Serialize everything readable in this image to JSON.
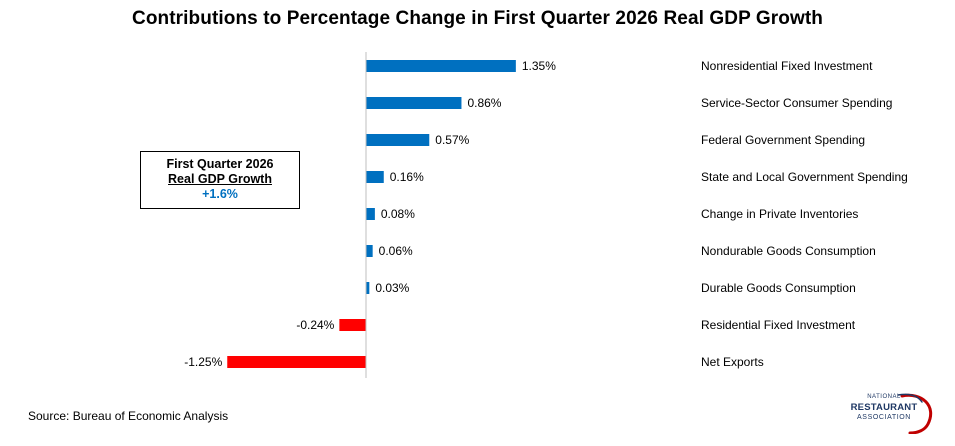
{
  "title": "Contributions to Percentage Change in First Quarter 2026 Real GDP Growth",
  "callout": {
    "line1": "First Quarter 2026",
    "line2": "Real GDP Growth",
    "value": "+1.6%"
  },
  "source": "Source: Bureau of Economic Analysis",
  "logo": {
    "line1": "NATIONAL",
    "line2": "RESTAURANT",
    "line3": "ASSOCIATION",
    "icon": "swoosh-logo"
  },
  "colors": {
    "positive": "#0070c0",
    "negative": "#ff0000",
    "callout_value": "#0070c0",
    "logo_red": "#c00000",
    "logo_navy": "#1f3864"
  },
  "chart_data": {
    "type": "bar",
    "orientation": "horizontal",
    "title": "Contributions to Percentage Change in First Quarter 2026 Real GDP Growth",
    "categories": [
      "Nonresidential Fixed Investment",
      "Service-Sector Consumer Spending",
      "Federal Government Spending",
      "State and Local Government Spending",
      "Change in Private Inventories",
      "Nondurable Goods Consumption",
      "Durable Goods Consumption",
      "Residential Fixed Investment",
      "Net Exports"
    ],
    "values": [
      1.35,
      0.86,
      0.57,
      0.16,
      0.08,
      0.06,
      0.03,
      -0.24,
      -1.25
    ],
    "labels": [
      "1.35%",
      "0.86%",
      "0.57%",
      "0.16%",
      "0.08%",
      "0.06%",
      "0.03%",
      "-0.24%",
      "-1.25%"
    ],
    "xlim": [
      -1.25,
      1.35
    ],
    "grid": false,
    "legend": "none"
  }
}
